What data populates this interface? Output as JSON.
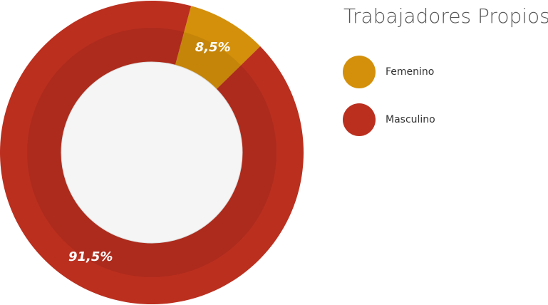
{
  "chart_data": {
    "type": "donut",
    "title": "Trabajadores Propios",
    "categories": [
      "Femenino",
      "Masculino"
    ],
    "values": [
      8.5,
      91.5
    ],
    "value_labels": [
      "8,5%",
      "91,5%"
    ],
    "colors": [
      "#d4900a",
      "#bb2f1f"
    ],
    "legend": "right"
  }
}
